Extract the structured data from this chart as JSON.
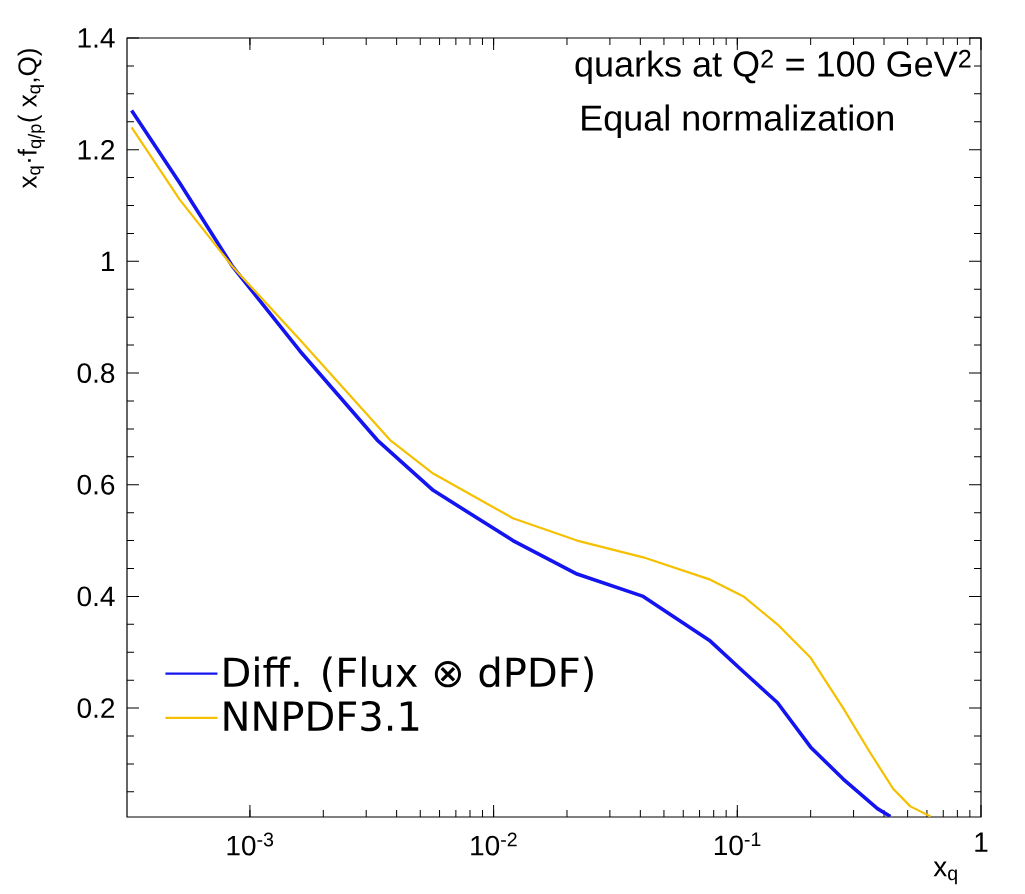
{
  "chart_data": {
    "type": "line",
    "xlabel": "x$_{q}$",
    "ylabel": "x$_{q}$·f$_{q/p}$( x$_{q}$,Q)",
    "annotations": [
      "quarks at Q$^{2}$ = 100 GeV$^{2}$",
      "Equal normalization"
    ],
    "log": "x",
    "xlim": [
      0.000313,
      1
    ],
    "ylim": [
      0.005,
      1.4
    ],
    "xticks": [
      {
        "value": 0.001,
        "label": "10$^{-3}$"
      },
      {
        "value": 0.01,
        "label": "10$^{-2}$"
      },
      {
        "value": 0.1,
        "label": "10$^{-1}$"
      },
      1
    ],
    "yticks": [
      0.2,
      0.4,
      0.6,
      0.8,
      1,
      1.2,
      1.4
    ],
    "legend": "bottom left",
    "grid": false,
    "line_style": "solid",
    "series": [
      {
        "name": "Diff. (Flux ⊗ dPDF)",
        "color": "#1414f0",
        "x": [
          0.000327,
          0.000516,
          0.000851,
          0.0016,
          0.00333,
          0.00565,
          0.012,
          0.022,
          0.0411,
          0.0775,
          0.106,
          0.146,
          0.2,
          0.272,
          0.376,
          0.425
        ],
        "values": [
          1.27,
          1.14,
          0.99,
          0.84,
          0.68,
          0.59,
          0.5,
          0.44,
          0.4,
          0.32,
          0.265,
          0.21,
          0.13,
          0.073,
          0.02,
          0.006
        ]
      },
      {
        "name": "NNPDF3.1",
        "color": "#f5c000",
        "x": [
          0.000327,
          0.000516,
          0.000851,
          0.0016,
          0.00376,
          0.00565,
          0.012,
          0.022,
          0.0411,
          0.0775,
          0.106,
          0.146,
          0.2,
          0.272,
          0.351,
          0.437,
          0.513,
          0.621
        ],
        "values": [
          1.24,
          1.11,
          0.99,
          0.86,
          0.68,
          0.62,
          0.54,
          0.5,
          0.47,
          0.43,
          0.4,
          0.35,
          0.29,
          0.2,
          0.12,
          0.055,
          0.024,
          0.006
        ]
      }
    ]
  }
}
